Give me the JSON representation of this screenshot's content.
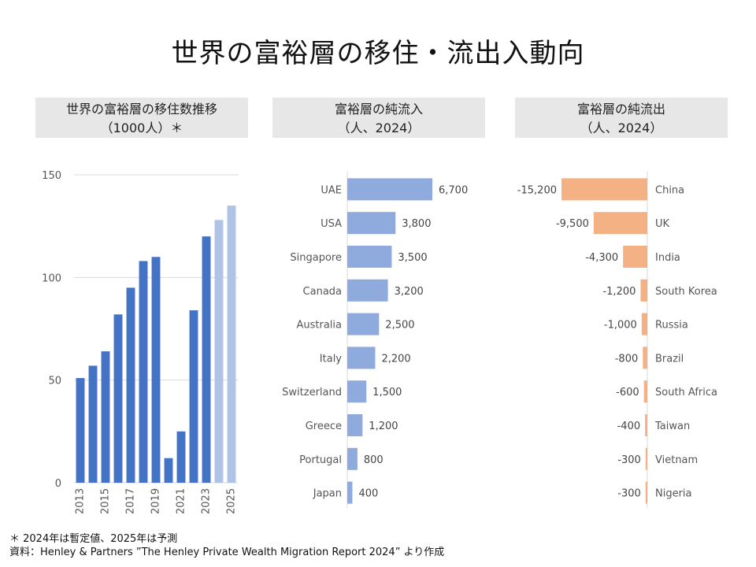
{
  "title": "世界の富裕層の移住・流出入動向",
  "panels": {
    "p1": {
      "line1": "世界の富裕層の移住数推移",
      "line2": "（1000人）＊"
    },
    "p2": {
      "line1": "富裕層の純流入",
      "line2": "（人、2024）"
    },
    "p3": {
      "line1": "富裕層の純流出",
      "line2": "（人、2024）"
    }
  },
  "footnote": {
    "line1": "＊ 2024年は暫定値、2025年は予測",
    "line2": "資料：Henley & Partners ”The Henley Private Wealth Migration Report 2024” より作成"
  },
  "colors": {
    "actual": "#4472c4",
    "forecast": "#aec3e6",
    "inflow": "#8faadc",
    "outflow": "#f4b183"
  },
  "chart_data": [
    {
      "type": "bar",
      "title": "世界の富裕層の移住数推移（1000人）＊",
      "categories": [
        "2013",
        "2014",
        "2015",
        "2016",
        "2017",
        "2018",
        "2019",
        "2020",
        "2021",
        "2022",
        "2023",
        "2024",
        "2025"
      ],
      "values": [
        51,
        57,
        64,
        82,
        95,
        108,
        110,
        12,
        25,
        84,
        120,
        128,
        135
      ],
      "estimated": [
        false,
        false,
        false,
        false,
        false,
        false,
        false,
        false,
        false,
        false,
        false,
        true,
        true
      ],
      "x_tick_labels": [
        "2013",
        "2015",
        "2017",
        "2019",
        "2021",
        "2023",
        "2025"
      ],
      "yticks": [
        0,
        50,
        100,
        150
      ],
      "ylim": [
        0,
        150
      ],
      "grid": true
    },
    {
      "type": "bar",
      "orientation": "horizontal",
      "title": "富裕層の純流入（人、2024）",
      "categories": [
        "UAE",
        "USA",
        "Singapore",
        "Canada",
        "Australia",
        "Italy",
        "Switzerland",
        "Greece",
        "Portugal",
        "Japan"
      ],
      "values": [
        6700,
        3800,
        3500,
        3200,
        2500,
        2200,
        1500,
        1200,
        800,
        400
      ],
      "labels": [
        "6,700",
        "3,800",
        "3,500",
        "3,200",
        "2,500",
        "2,200",
        "1,500",
        "1,200",
        "800",
        "400"
      ]
    },
    {
      "type": "bar",
      "orientation": "horizontal",
      "title": "富裕層の純流出（人、2024）",
      "categories": [
        "China",
        "UK",
        "India",
        "South Korea",
        "Russia",
        "Brazil",
        "South Africa",
        "Taiwan",
        "Vietnam",
        "Nigeria"
      ],
      "values": [
        -15200,
        -9500,
        -4300,
        -1200,
        -1000,
        -800,
        -600,
        -400,
        -300,
        -300
      ],
      "labels": [
        "-15,200",
        "-9,500",
        "-4,300",
        "-1,200",
        "-1,000",
        "-800",
        "-600",
        "-400",
        "-300",
        "-300"
      ]
    }
  ]
}
